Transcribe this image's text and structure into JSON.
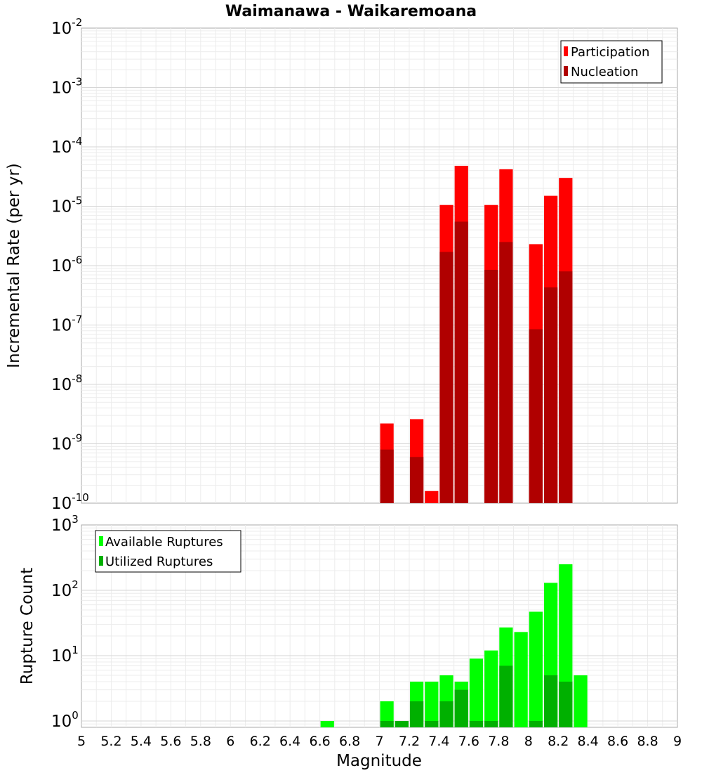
{
  "chart_data": {
    "title": "Waimanawa - Waikaremoana",
    "xlabel": "Magnitude",
    "xlim": [
      5,
      9
    ],
    "xticks": [
      "5",
      "5.2",
      "5.4",
      "5.6",
      "5.8",
      "6",
      "6.2",
      "6.4",
      "6.6",
      "6.8",
      "7",
      "7.2",
      "7.4",
      "7.6",
      "7.8",
      "8",
      "8.2",
      "8.4",
      "8.6",
      "8.8",
      "9"
    ],
    "bin_width": 0.1,
    "panels": [
      {
        "type": "bar",
        "scale": "log",
        "ylabel": "Incremental Rate (per yr)",
        "ylim": [
          1e-10,
          0.01
        ],
        "y_exponents": [
          "-10",
          "-9",
          "-8",
          "-7",
          "-6",
          "-5",
          "-4",
          "-3",
          "-2"
        ],
        "legend_position": "top-right",
        "series": [
          {
            "name": "Participation",
            "color": "#ff0000",
            "x": [
              7.05,
              7.25,
              7.35,
              7.45,
              7.55,
              7.75,
              7.85,
              8.05,
              8.15,
              8.25
            ],
            "values": [
              2.2e-09,
              2.6e-09,
              1.6e-10,
              1.05e-05,
              4.8e-05,
              1.05e-05,
              4.2e-05,
              2.3e-06,
              1.5e-05,
              3e-05
            ]
          },
          {
            "name": "Nucleation",
            "color": "#b00000",
            "x": [
              7.05,
              7.25,
              7.45,
              7.55,
              7.75,
              7.85,
              8.05,
              8.15,
              8.25
            ],
            "values": [
              8e-10,
              6e-10,
              1.7e-06,
              5.5e-06,
              8.5e-07,
              2.5e-06,
              8.5e-08,
              4.3e-07,
              8e-07
            ]
          }
        ]
      },
      {
        "type": "bar",
        "scale": "log",
        "ylabel": "Rupture Count",
        "ylim": [
          0.8,
          1000
        ],
        "y_exponents": [
          "0",
          "1",
          "2",
          "3"
        ],
        "legend_position": "top-left",
        "series": [
          {
            "name": "Available Ruptures",
            "color": "#00ff00",
            "x": [
              6.65,
              7.05,
              7.15,
              7.25,
              7.35,
              7.45,
              7.55,
              7.65,
              7.75,
              7.85,
              7.95,
              8.05,
              8.15,
              8.25,
              8.35
            ],
            "values": [
              1,
              2,
              1,
              4,
              4,
              5,
              4,
              9,
              12,
              27,
              23,
              47,
              130,
              250,
              5
            ]
          },
          {
            "name": "Utilized Ruptures",
            "color": "#00b000",
            "x": [
              7.05,
              7.15,
              7.25,
              7.35,
              7.45,
              7.55,
              7.65,
              7.75,
              7.85,
              8.05,
              8.15,
              8.25
            ],
            "values": [
              1,
              1,
              2,
              1,
              2,
              3,
              1,
              1,
              7,
              1,
              5,
              4
            ]
          }
        ]
      }
    ]
  }
}
